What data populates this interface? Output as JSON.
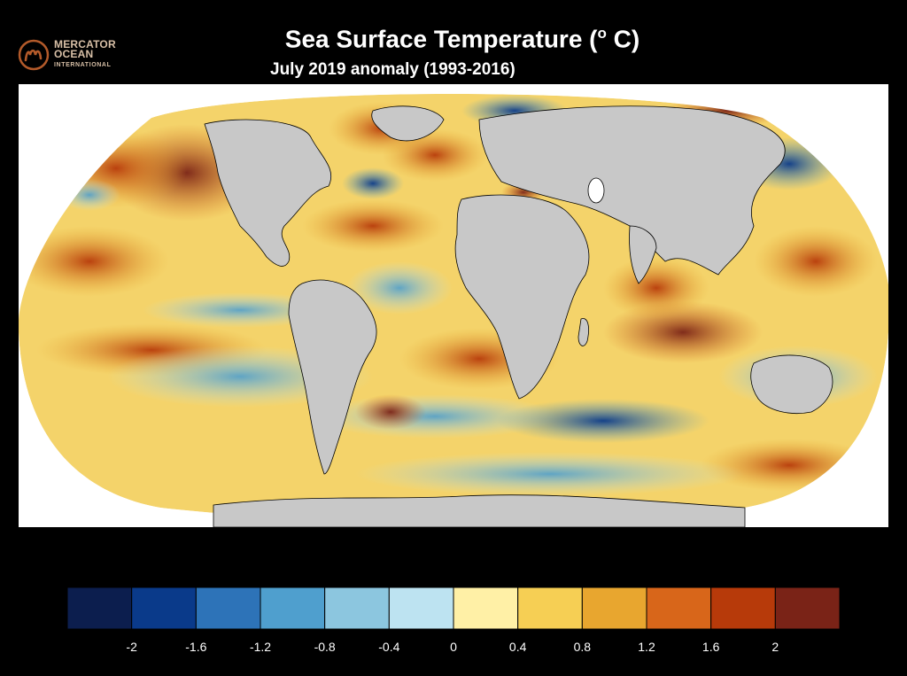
{
  "logo": {
    "line1": "MERCATOR",
    "line2": "OCEAN",
    "line3": "INTERNATIONAL"
  },
  "title": {
    "main": "Sea Surface Temperature (",
    "degree": "o",
    "unit": " C)",
    "subtitle": "July 2019 anomaly (1993-2016)"
  },
  "colorbar": {
    "colors": [
      "#0c1e4e",
      "#0a3a8a",
      "#2d73b8",
      "#4f9fce",
      "#8cc6df",
      "#bde3f1",
      "#fff0a6",
      "#f6cf54",
      "#e8a62f",
      "#d8661a",
      "#b73a0a",
      "#7a2317"
    ],
    "tick_labels": [
      "-2",
      "-1.6",
      "-1.2",
      "-0.8",
      "-0.4",
      "0",
      "0.4",
      "0.8",
      "1.2",
      "1.6",
      "2"
    ]
  },
  "palette": {
    "land": "#c8c8c8",
    "background": "#000000",
    "logo": "#d7bfa6",
    "logo_mark": "#b35a2a"
  }
}
